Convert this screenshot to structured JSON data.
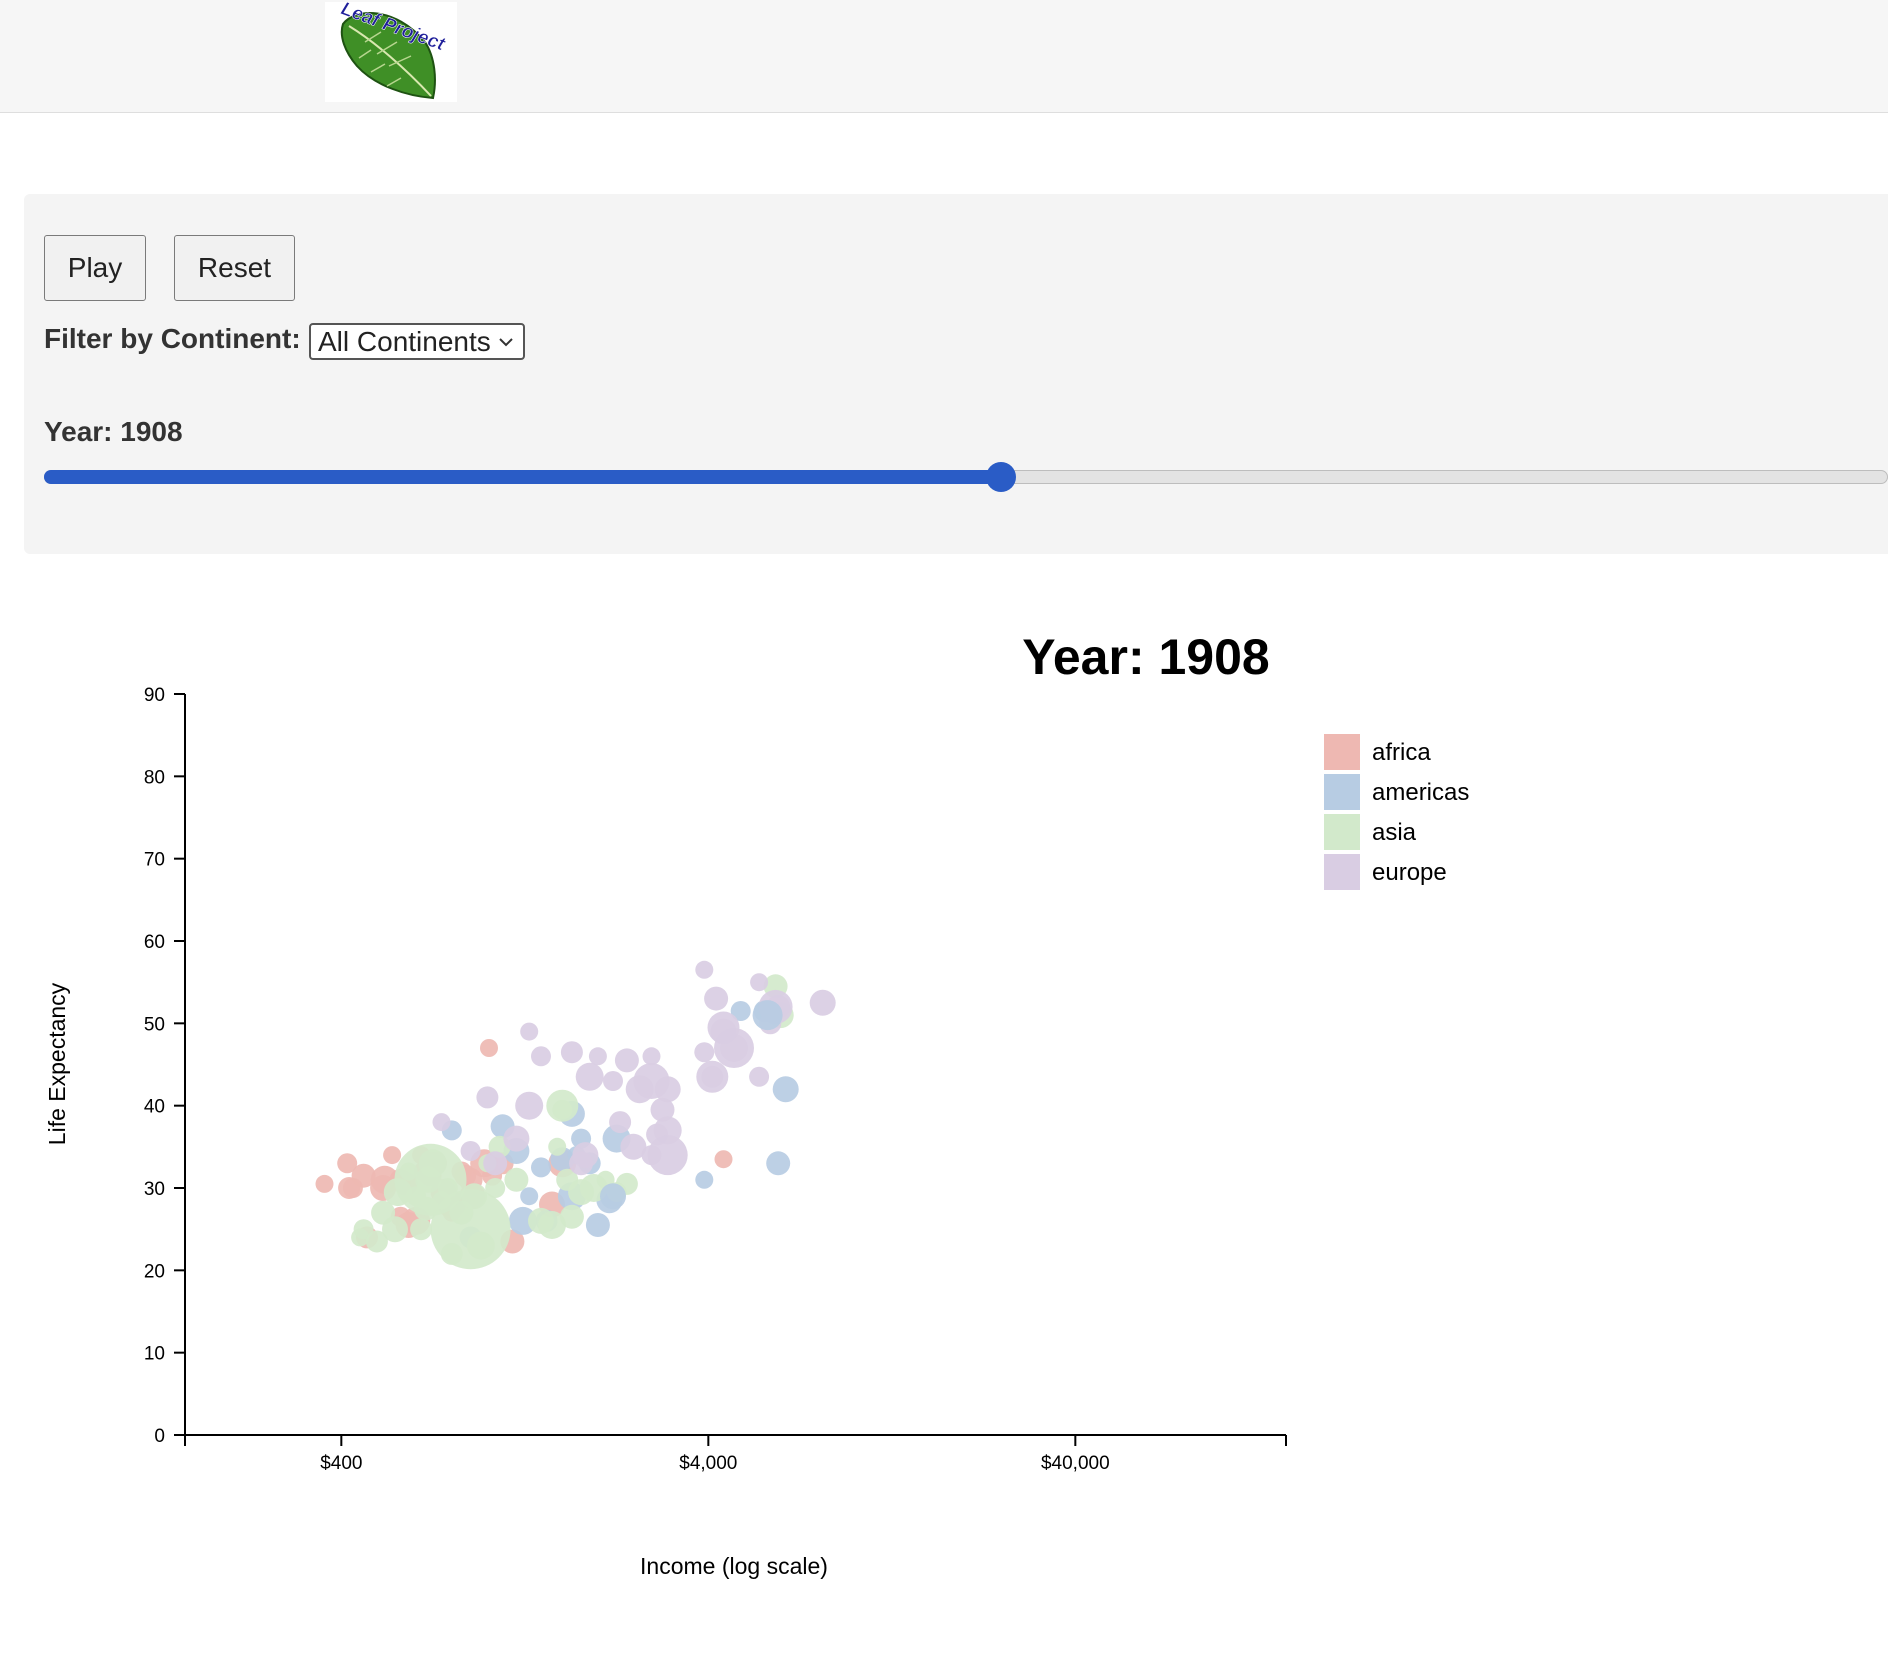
{
  "header": {
    "logo_text": "Leaf Project"
  },
  "controls": {
    "play_label": "Play",
    "reset_label": "Reset",
    "filter_label": "Filter by Continent:",
    "filter_selected": "All Continents",
    "year_label": "Year: 1908",
    "slider": {
      "min": 1800,
      "max": 2008,
      "value": 1908
    }
  },
  "colors": {
    "africa": "#eeb8b2",
    "americas": "#b7cce3",
    "asia": "#d2e9cb",
    "europe": "#d9cde3",
    "accent": "#2a5cc6"
  },
  "chart_data": {
    "type": "scatter",
    "title": "Year: 1908",
    "xlabel": "Income (log scale)",
    "ylabel": "Life Expectancy",
    "xscale": "log",
    "xlim": [
      150,
      150000
    ],
    "ylim": [
      0,
      90
    ],
    "x_ticks": [
      {
        "value": 400,
        "label": "$400"
      },
      {
        "value": 4000,
        "label": "$4,000"
      },
      {
        "value": 40000,
        "label": "$40,000"
      }
    ],
    "y_ticks": [
      0,
      10,
      20,
      30,
      40,
      50,
      60,
      70,
      80,
      90
    ],
    "legend": [
      "africa",
      "americas",
      "asia",
      "europe"
    ],
    "legend_position": "right",
    "series": [
      {
        "name": "africa",
        "points": [
          [
            360,
            30.5
          ],
          [
            415,
            33
          ],
          [
            420,
            30
          ],
          [
            460,
            31.5
          ],
          [
            520,
            30
          ],
          [
            525,
            31
          ],
          [
            550,
            34
          ],
          [
            580,
            26.5
          ],
          [
            580,
            31
          ],
          [
            600,
            30.5
          ],
          [
            610,
            25.5
          ],
          [
            640,
            26
          ],
          [
            660,
            34
          ],
          [
            670,
            32
          ],
          [
            700,
            31.5
          ],
          [
            720,
            33
          ],
          [
            760,
            29.5
          ],
          [
            800,
            28
          ],
          [
            800,
            27
          ],
          [
            850,
            32
          ],
          [
            870,
            31.5
          ],
          [
            900,
            31
          ],
          [
            910,
            29
          ],
          [
            980,
            33
          ],
          [
            1010,
            47
          ],
          [
            1030,
            31.5
          ],
          [
            1100,
            33
          ],
          [
            1170,
            23.5
          ],
          [
            1500,
            28
          ],
          [
            1600,
            33
          ],
          [
            4400,
            33.5
          ],
          [
            430,
            30
          ],
          [
            470,
            24
          ]
        ]
      },
      {
        "name": "americas",
        "points": [
          [
            700,
            33
          ],
          [
            800,
            37
          ],
          [
            900,
            24
          ],
          [
            1100,
            37.5
          ],
          [
            1200,
            34.5
          ],
          [
            1250,
            26
          ],
          [
            1300,
            29
          ],
          [
            1400,
            32.5
          ],
          [
            1450,
            26
          ],
          [
            1600,
            33.5
          ],
          [
            1700,
            39
          ],
          [
            1700,
            29
          ],
          [
            1750,
            34
          ],
          [
            1800,
            36
          ],
          [
            1900,
            33
          ],
          [
            2000,
            25.5
          ],
          [
            2150,
            28.5
          ],
          [
            2250,
            36
          ],
          [
            3900,
            31
          ],
          [
            4900,
            51.5
          ],
          [
            5700,
            51.5
          ],
          [
            6200,
            33
          ],
          [
            6500,
            42
          ]
        ]
      },
      {
        "name": "asia",
        "points": [
          [
            450,
            24
          ],
          [
            460,
            25
          ],
          [
            500,
            23.5
          ],
          [
            520,
            27
          ],
          [
            560,
            25
          ],
          [
            570,
            29.5
          ],
          [
            610,
            32
          ],
          [
            640,
            29
          ],
          [
            660,
            25
          ],
          [
            680,
            27.5
          ],
          [
            690,
            31
          ],
          [
            710,
            33
          ],
          [
            750,
            28.5
          ],
          [
            780,
            30
          ],
          [
            800,
            22
          ],
          [
            850,
            27
          ],
          [
            920,
            29
          ],
          [
            960,
            23
          ],
          [
            1000,
            33
          ],
          [
            1050,
            30
          ],
          [
            1080,
            35
          ],
          [
            1200,
            31
          ],
          [
            1400,
            26
          ],
          [
            1500,
            25.5
          ],
          [
            1550,
            35
          ],
          [
            1600,
            39.5
          ],
          [
            1650,
            31
          ],
          [
            1700,
            26.5
          ],
          [
            1800,
            29.5
          ],
          [
            1950,
            30
          ],
          [
            2100,
            31
          ],
          [
            2250,
            29.5
          ],
          [
            2400,
            30.5
          ],
          [
            6100,
            54.5
          ],
          [
            6300,
            51
          ]
        ]
      },
      {
        "name": "europe",
        "points": [
          [
            750,
            38
          ],
          [
            900,
            34.5
          ],
          [
            1000,
            41
          ],
          [
            1050,
            33
          ],
          [
            1200,
            36
          ],
          [
            1300,
            40
          ],
          [
            1300,
            49
          ],
          [
            1400,
            46
          ],
          [
            1700,
            46.5
          ],
          [
            1800,
            33
          ],
          [
            1850,
            34
          ],
          [
            1900,
            43.5
          ],
          [
            2000,
            46
          ],
          [
            2200,
            43
          ],
          [
            2300,
            38
          ],
          [
            2400,
            45.5
          ],
          [
            2500,
            35
          ],
          [
            2600,
            42
          ],
          [
            2800,
            46
          ],
          [
            2800,
            34
          ],
          [
            2900,
            36.5
          ],
          [
            3000,
            39.5
          ],
          [
            3100,
            42
          ],
          [
            3100,
            37
          ],
          [
            3900,
            56.5
          ],
          [
            3900,
            46.5
          ],
          [
            4100,
            43.5
          ],
          [
            4200,
            53
          ],
          [
            4400,
            49
          ],
          [
            4700,
            47
          ],
          [
            5500,
            55
          ],
          [
            5500,
            43.5
          ],
          [
            5900,
            50
          ],
          [
            6200,
            52
          ],
          [
            8200,
            52.5
          ]
        ]
      }
    ]
  }
}
